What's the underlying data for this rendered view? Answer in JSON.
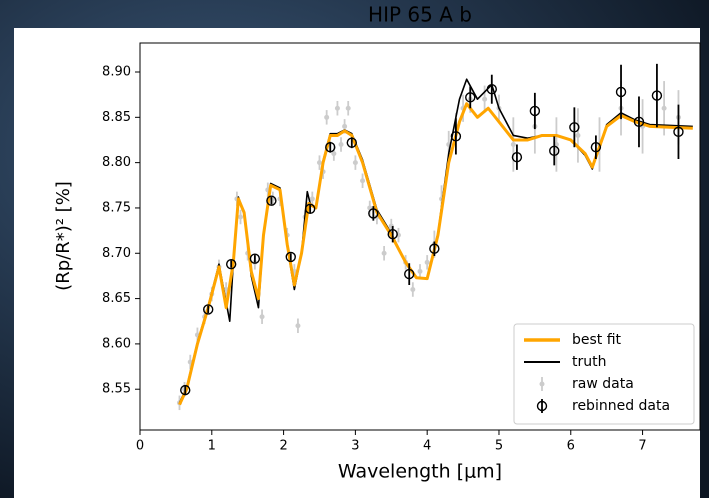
{
  "chart_data": {
    "type": "line",
    "title": "HIP 65 A b",
    "xlabel": "Wavelength [μm]",
    "ylabel": "(Rp/R*)² [%]",
    "xlim": [
      0,
      7.8
    ],
    "ylim": [
      8.505,
      8.932
    ],
    "xticks": [
      0,
      1,
      2,
      3,
      4,
      5,
      6,
      7
    ],
    "yticks": [
      {
        "value": 8.55,
        "label": "8.55"
      },
      {
        "value": 8.6,
        "label": "8.60"
      },
      {
        "value": 8.65,
        "label": "8.65"
      },
      {
        "value": 8.7,
        "label": "8.70"
      },
      {
        "value": 8.75,
        "label": "8.75"
      },
      {
        "value": 8.8,
        "label": "8.80"
      },
      {
        "value": 8.85,
        "label": "8.85"
      },
      {
        "value": 8.9,
        "label": "8.90"
      }
    ],
    "legend": "lower right",
    "series": [
      {
        "name": "raw data",
        "kind": "errorbar",
        "color": "#cccccc",
        "x": [
          0.55,
          0.62,
          0.7,
          0.8,
          0.9,
          1.0,
          1.1,
          1.2,
          1.35,
          1.4,
          1.5,
          1.6,
          1.7,
          1.78,
          1.85,
          1.95,
          2.05,
          2.15,
          2.2,
          2.3,
          2.4,
          2.5,
          2.55,
          2.6,
          2.7,
          2.75,
          2.8,
          2.85,
          2.9,
          3.0,
          3.1,
          3.2,
          3.3,
          3.4,
          3.5,
          3.6,
          3.7,
          3.8,
          3.9,
          4.0,
          4.1,
          4.2,
          4.3,
          4.4,
          4.5,
          4.6,
          4.8,
          5.0,
          5.2,
          5.5,
          5.8,
          6.1,
          6.4,
          6.7,
          7.0,
          7.3,
          7.5
        ],
        "values": [
          8.535,
          8.55,
          8.58,
          8.61,
          8.63,
          8.655,
          8.685,
          8.66,
          8.76,
          8.74,
          8.7,
          8.69,
          8.63,
          8.77,
          8.76,
          8.76,
          8.72,
          8.68,
          8.62,
          8.74,
          8.76,
          8.8,
          8.79,
          8.85,
          8.81,
          8.86,
          8.82,
          8.84,
          8.86,
          8.8,
          8.78,
          8.75,
          8.74,
          8.7,
          8.73,
          8.72,
          8.69,
          8.66,
          8.68,
          8.69,
          8.71,
          8.76,
          8.82,
          8.84,
          8.86,
          8.87,
          8.87,
          8.86,
          8.82,
          8.84,
          8.82,
          8.83,
          8.82,
          8.86,
          8.84,
          8.86,
          8.85
        ],
        "errors": [
          0.008,
          0.008,
          0.008,
          0.008,
          0.008,
          0.008,
          0.008,
          0.008,
          0.008,
          0.008,
          0.008,
          0.008,
          0.008,
          0.008,
          0.008,
          0.008,
          0.008,
          0.008,
          0.008,
          0.008,
          0.008,
          0.008,
          0.008,
          0.008,
          0.008,
          0.008,
          0.008,
          0.008,
          0.008,
          0.008,
          0.008,
          0.008,
          0.008,
          0.008,
          0.008,
          0.008,
          0.008,
          0.008,
          0.008,
          0.008,
          0.015,
          0.015,
          0.015,
          0.015,
          0.015,
          0.015,
          0.015,
          0.015,
          0.03,
          0.03,
          0.03,
          0.03,
          0.03,
          0.03,
          0.03,
          0.03,
          0.03
        ]
      },
      {
        "name": "truth",
        "kind": "line",
        "color": "#000000",
        "x": [
          0.55,
          0.65,
          0.8,
          0.95,
          1.1,
          1.25,
          1.3,
          1.37,
          1.45,
          1.55,
          1.65,
          1.72,
          1.82,
          1.95,
          2.05,
          2.15,
          2.25,
          2.33,
          2.38,
          2.45,
          2.55,
          2.65,
          2.75,
          2.85,
          2.95,
          3.1,
          3.3,
          3.5,
          3.7,
          3.85,
          4.0,
          4.15,
          4.3,
          4.45,
          4.55,
          4.7,
          4.9,
          5.0,
          5.2,
          5.4,
          5.6,
          5.8,
          6.0,
          6.2,
          6.3,
          6.5,
          6.7,
          6.9,
          7.1,
          7.7
        ],
        "values": [
          8.535,
          8.552,
          8.602,
          8.642,
          8.688,
          8.625,
          8.69,
          8.762,
          8.745,
          8.675,
          8.64,
          8.72,
          8.777,
          8.772,
          8.708,
          8.66,
          8.7,
          8.768,
          8.752,
          8.752,
          8.802,
          8.832,
          8.832,
          8.836,
          8.832,
          8.803,
          8.748,
          8.722,
          8.69,
          8.673,
          8.672,
          8.722,
          8.81,
          8.87,
          8.892,
          8.87,
          8.886,
          8.86,
          8.83,
          8.827,
          8.83,
          8.83,
          8.825,
          8.808,
          8.793,
          8.842,
          8.855,
          8.847,
          8.842,
          8.84
        ]
      },
      {
        "name": "best fit",
        "kind": "line",
        "color": "#ffa500",
        "x": [
          0.55,
          0.65,
          0.8,
          0.95,
          1.1,
          1.2,
          1.3,
          1.37,
          1.45,
          1.55,
          1.65,
          1.72,
          1.82,
          1.95,
          2.05,
          2.15,
          2.25,
          2.35,
          2.45,
          2.55,
          2.65,
          2.75,
          2.85,
          2.95,
          3.1,
          3.3,
          3.5,
          3.7,
          3.85,
          4.0,
          4.15,
          4.3,
          4.45,
          4.55,
          4.7,
          4.85,
          5.0,
          5.2,
          5.4,
          5.6,
          5.8,
          6.0,
          6.2,
          6.3,
          6.5,
          6.7,
          6.9,
          7.1,
          7.7
        ],
        "values": [
          8.533,
          8.55,
          8.6,
          8.64,
          8.685,
          8.64,
          8.69,
          8.76,
          8.745,
          8.68,
          8.65,
          8.72,
          8.775,
          8.77,
          8.71,
          8.665,
          8.7,
          8.755,
          8.75,
          8.8,
          8.83,
          8.83,
          8.835,
          8.83,
          8.8,
          8.745,
          8.72,
          8.69,
          8.673,
          8.672,
          8.72,
          8.8,
          8.845,
          8.865,
          8.85,
          8.86,
          8.845,
          8.825,
          8.825,
          8.83,
          8.83,
          8.825,
          8.81,
          8.795,
          8.84,
          8.852,
          8.845,
          8.84,
          8.838
        ]
      },
      {
        "name": "rebinned data",
        "kind": "errorbar",
        "color": "#000000",
        "marker": "open-circle",
        "x": [
          0.63,
          0.95,
          1.27,
          1.6,
          1.83,
          2.1,
          2.37,
          2.65,
          2.95,
          3.25,
          3.52,
          3.75,
          4.1,
          4.4,
          4.6,
          4.9,
          5.25,
          5.5,
          5.77,
          6.05,
          6.35,
          6.7,
          6.95,
          7.2,
          7.5
        ],
        "values": [
          8.549,
          8.638,
          8.688,
          8.694,
          8.758,
          8.696,
          8.749,
          8.817,
          8.822,
          8.744,
          8.721,
          8.677,
          8.705,
          8.829,
          8.872,
          8.881,
          8.806,
          8.857,
          8.813,
          8.839,
          8.817,
          8.878,
          8.845,
          8.874,
          8.834
        ],
        "errors": [
          0.005,
          0.004,
          0.004,
          0.004,
          0.004,
          0.004,
          0.005,
          0.006,
          0.006,
          0.008,
          0.009,
          0.012,
          0.008,
          0.02,
          0.012,
          0.016,
          0.014,
          0.02,
          0.016,
          0.022,
          0.013,
          0.03,
          0.028,
          0.035,
          0.03
        ]
      }
    ]
  }
}
